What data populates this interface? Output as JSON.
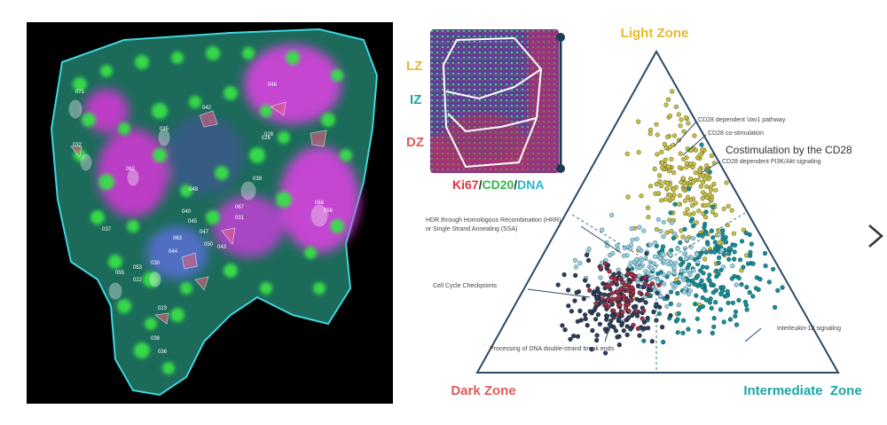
{
  "tissue_image": {
    "roi_labels": [
      "071",
      "042",
      "046",
      "035",
      "043",
      "032",
      "062",
      "026",
      "048",
      "053",
      "037",
      "038",
      "067",
      "066",
      "047",
      "040",
      "063",
      "045",
      "044",
      "031",
      "023",
      "036",
      "050",
      "055",
      "056",
      "039",
      "028",
      "022",
      "030"
    ]
  },
  "inset": {
    "zone_labels": [
      "LZ",
      "IZ",
      "DZ"
    ],
    "stain_legend": [
      {
        "text": "Ki67",
        "color": "#e8303a"
      },
      {
        "text": "/",
        "color": "#333333"
      },
      {
        "text": "CD20",
        "color": "#2fb84a"
      },
      {
        "text": "/",
        "color": "#333333"
      },
      {
        "text": "DNA",
        "color": "#2ab6cf"
      }
    ]
  },
  "ternary": {
    "vertex_labels": {
      "top": "Light Zone",
      "left": "Dark Zone",
      "right": "Intermediate  Zone"
    },
    "callout_highlight": "Costimulation by the CD28",
    "annotations": [
      "CD28 dependent Vav1 pathway",
      "CD28 co-stimulation",
      "CD28 dependent PI3K/Akt signaling",
      "HDR through Homologous Recombination (HRR)",
      "or Single Strand Annealing (SSA)",
      "Cell Cycle Checkpoints",
      "Processing of DNA double-strand break ends",
      "Interleukin-18 signaling"
    ]
  },
  "colors": {
    "light_zone": "#e8b92e",
    "dark_zone": "#e05a5a",
    "intermediate_zone": "#17a6a6",
    "cluster_yellow": "#c8c24a",
    "cluster_teal": "#1b8d96",
    "cluster_lightblue": "#9ccfe0",
    "cluster_dark": "#2f3f5a",
    "cluster_red": "#a2344a"
  },
  "nav": {
    "next_icon": "chevron-right-icon"
  }
}
